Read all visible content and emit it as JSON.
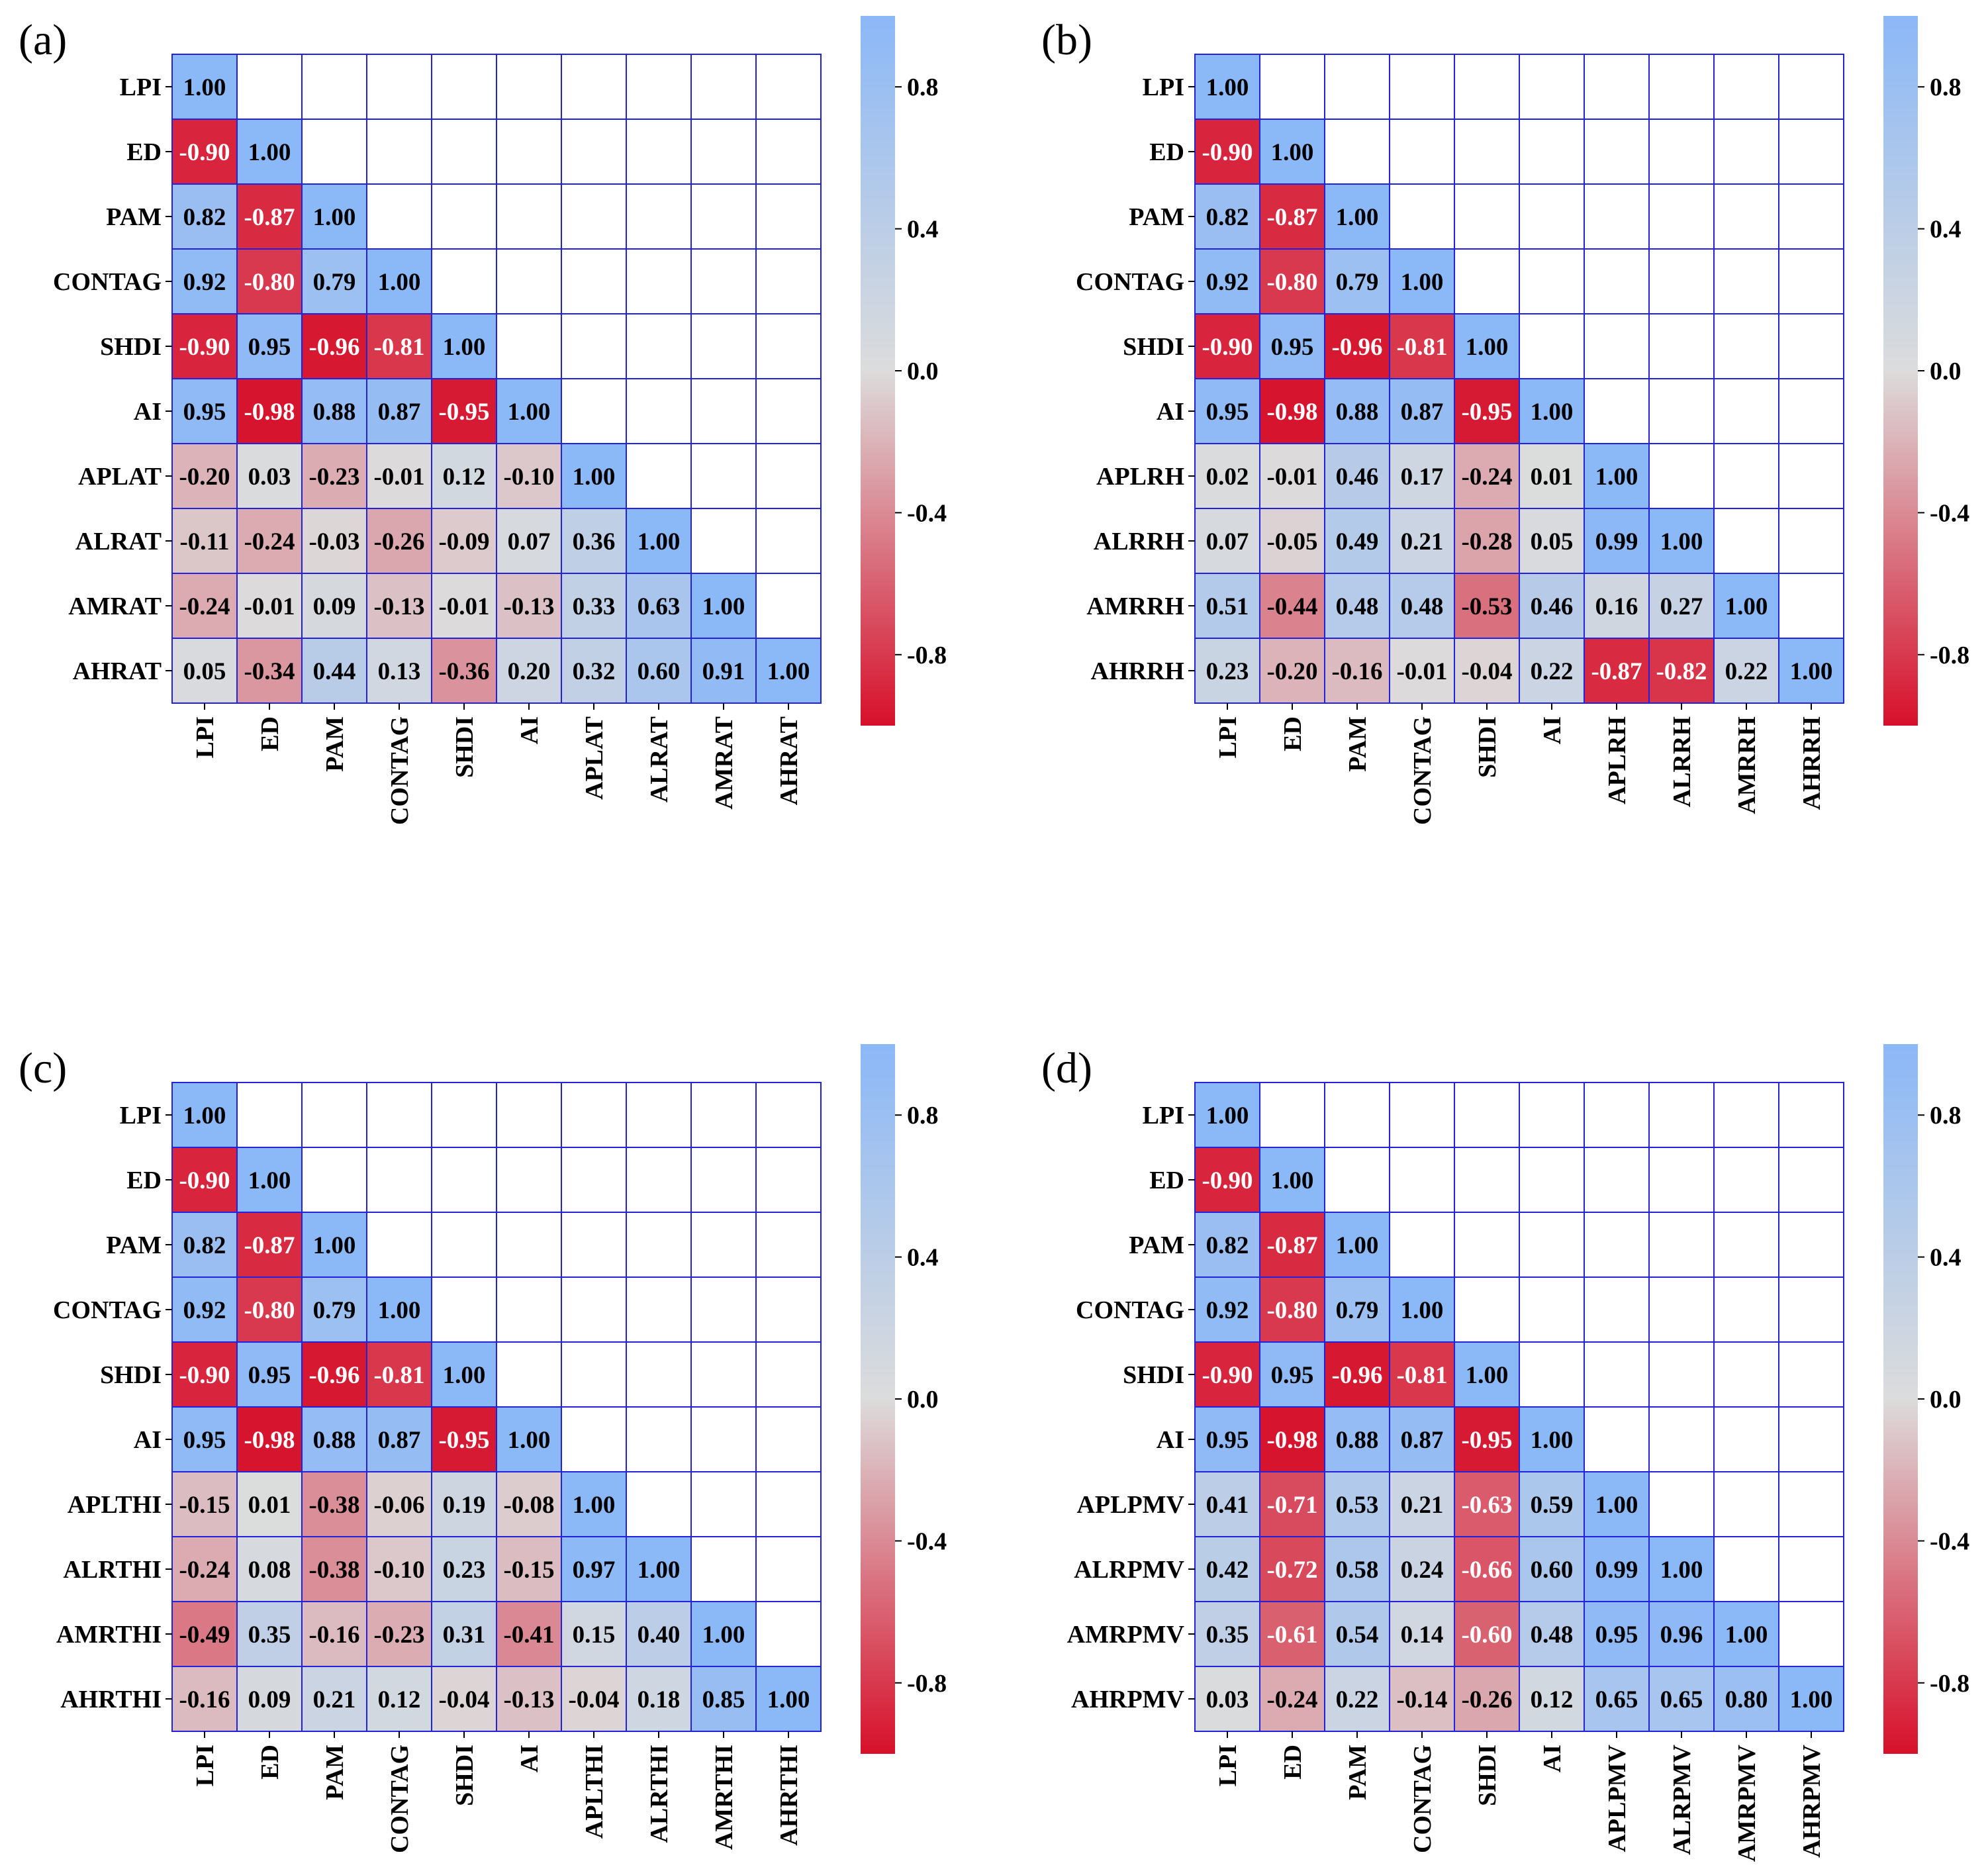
{
  "colors": {
    "grid": "#2222dd",
    "low": "#d7102a",
    "mid": "#dcdcdc",
    "high": "#8bb8f7",
    "empty": "#ffffff"
  },
  "chart_data": [
    {
      "type": "heatmap",
      "panel_label": "(a)",
      "labels": [
        "LPI",
        "ED",
        "PAM",
        "CONTAG",
        "SHDI",
        "AI",
        "APLAT",
        "ALRAT",
        "AMRAT",
        "AHRAT"
      ],
      "rows": [
        [
          "1.00"
        ],
        [
          "-0.90",
          "1.00"
        ],
        [
          "0.82",
          "-0.87",
          "1.00"
        ],
        [
          "0.92",
          "-0.80",
          "0.79",
          "1.00"
        ],
        [
          "-0.90",
          "0.95",
          "-0.96",
          "-0.81",
          "1.00"
        ],
        [
          "0.95",
          "-0.98",
          "0.88",
          "0.87",
          "-0.95",
          "1.00"
        ],
        [
          "-0.20",
          "0.03",
          "-0.23",
          "-0.01",
          "0.12",
          "-0.10",
          "1.00"
        ],
        [
          "-0.11",
          "-0.24",
          "-0.03",
          "-0.26",
          "-0.09",
          "0.07",
          "0.36",
          "1.00"
        ],
        [
          "-0.24",
          "-0.01",
          "0.09",
          "-0.13",
          "-0.01",
          "-0.13",
          "0.33",
          "0.63",
          "1.00"
        ],
        [
          "0.05",
          "-0.34",
          "0.44",
          "0.13",
          "-0.36",
          "0.20",
          "0.32",
          "0.60",
          "0.91",
          "1.00"
        ]
      ],
      "colorbar": {
        "range": [
          -1.0,
          1.0
        ],
        "ticks": [
          "0.8",
          "0.4",
          "0.0",
          "-0.4",
          "-0.8"
        ],
        "tick_values": [
          0.8,
          0.4,
          0.0,
          -0.4,
          -0.8
        ]
      }
    },
    {
      "type": "heatmap",
      "panel_label": "(b)",
      "labels": [
        "LPI",
        "ED",
        "PAM",
        "CONTAG",
        "SHDI",
        "AI",
        "APLRH",
        "ALRRH",
        "AMRRH",
        "AHRRH"
      ],
      "rows": [
        [
          "1.00"
        ],
        [
          "-0.90",
          "1.00"
        ],
        [
          "0.82",
          "-0.87",
          "1.00"
        ],
        [
          "0.92",
          "-0.80",
          "0.79",
          "1.00"
        ],
        [
          "-0.90",
          "0.95",
          "-0.96",
          "-0.81",
          "1.00"
        ],
        [
          "0.95",
          "-0.98",
          "0.88",
          "0.87",
          "-0.95",
          "1.00"
        ],
        [
          "0.02",
          "-0.01",
          "0.46",
          "0.17",
          "-0.24",
          "0.01",
          "1.00"
        ],
        [
          "0.07",
          "-0.05",
          "0.49",
          "0.21",
          "-0.28",
          "0.05",
          "0.99",
          "1.00"
        ],
        [
          "0.51",
          "-0.44",
          "0.48",
          "0.48",
          "-0.53",
          "0.46",
          "0.16",
          "0.27",
          "1.00"
        ],
        [
          "0.23",
          "-0.20",
          "-0.16",
          "-0.01",
          "-0.04",
          "0.22",
          "-0.87",
          "-0.82",
          "0.22",
          "1.00"
        ]
      ],
      "colorbar": {
        "range": [
          -1.0,
          1.0
        ],
        "ticks": [
          "0.8",
          "0.4",
          "0.0",
          "-0.4",
          "-0.8"
        ],
        "tick_values": [
          0.8,
          0.4,
          0.0,
          -0.4,
          -0.8
        ]
      }
    },
    {
      "type": "heatmap",
      "panel_label": "(c)",
      "labels": [
        "LPI",
        "ED",
        "PAM",
        "CONTAG",
        "SHDI",
        "AI",
        "APLTHI",
        "ALRTHI",
        "AMRTHI",
        "AHRTHI"
      ],
      "rows": [
        [
          "1.00"
        ],
        [
          "-0.90",
          "1.00"
        ],
        [
          "0.82",
          "-0.87",
          "1.00"
        ],
        [
          "0.92",
          "-0.80",
          "0.79",
          "1.00"
        ],
        [
          "-0.90",
          "0.95",
          "-0.96",
          "-0.81",
          "1.00"
        ],
        [
          "0.95",
          "-0.98",
          "0.88",
          "0.87",
          "-0.95",
          "1.00"
        ],
        [
          "-0.15",
          "0.01",
          "-0.38",
          "-0.06",
          "0.19",
          "-0.08",
          "1.00"
        ],
        [
          "-0.24",
          "0.08",
          "-0.38",
          "-0.10",
          "0.23",
          "-0.15",
          "0.97",
          "1.00"
        ],
        [
          "-0.49",
          "0.35",
          "-0.16",
          "-0.23",
          "0.31",
          "-0.41",
          "0.15",
          "0.40",
          "1.00"
        ],
        [
          "-0.16",
          "0.09",
          "0.21",
          "0.12",
          "-0.04",
          "-0.13",
          "-0.04",
          "0.18",
          "0.85",
          "1.00"
        ]
      ],
      "colorbar": {
        "range": [
          -1.0,
          1.0
        ],
        "ticks": [
          "0.8",
          "0.4",
          "0.0",
          "-0.4",
          "-0.8"
        ],
        "tick_values": [
          0.8,
          0.4,
          0.0,
          -0.4,
          -0.8
        ]
      }
    },
    {
      "type": "heatmap",
      "panel_label": "(d)",
      "labels": [
        "LPI",
        "ED",
        "PAM",
        "CONTAG",
        "SHDI",
        "AI",
        "APLPMV",
        "ALRPMV",
        "AMRPMV",
        "AHRPMV"
      ],
      "rows": [
        [
          "1.00"
        ],
        [
          "-0.90",
          "1.00"
        ],
        [
          "0.82",
          "-0.87",
          "1.00"
        ],
        [
          "0.92",
          "-0.80",
          "0.79",
          "1.00"
        ],
        [
          "-0.90",
          "0.95",
          "-0.96",
          "-0.81",
          "1.00"
        ],
        [
          "0.95",
          "-0.98",
          "0.88",
          "0.87",
          "-0.95",
          "1.00"
        ],
        [
          "0.41",
          "-0.71",
          "0.53",
          "0.21",
          "-0.63",
          "0.59",
          "1.00"
        ],
        [
          "0.42",
          "-0.72",
          "0.58",
          "0.24",
          "-0.66",
          "0.60",
          "0.99",
          "1.00"
        ],
        [
          "0.35",
          "-0.61",
          "0.54",
          "0.14",
          "-0.60",
          "0.48",
          "0.95",
          "0.96",
          "1.00"
        ],
        [
          "0.03",
          "-0.24",
          "0.22",
          "-0.14",
          "-0.26",
          "0.12",
          "0.65",
          "0.65",
          "0.80",
          "1.00"
        ]
      ],
      "colorbar": {
        "range": [
          -1.0,
          1.0
        ],
        "ticks": [
          "0.8",
          "0.4",
          "0.0",
          "-0.4",
          "-0.8"
        ],
        "tick_values": [
          0.8,
          0.4,
          0.0,
          -0.4,
          -0.8
        ]
      }
    }
  ]
}
